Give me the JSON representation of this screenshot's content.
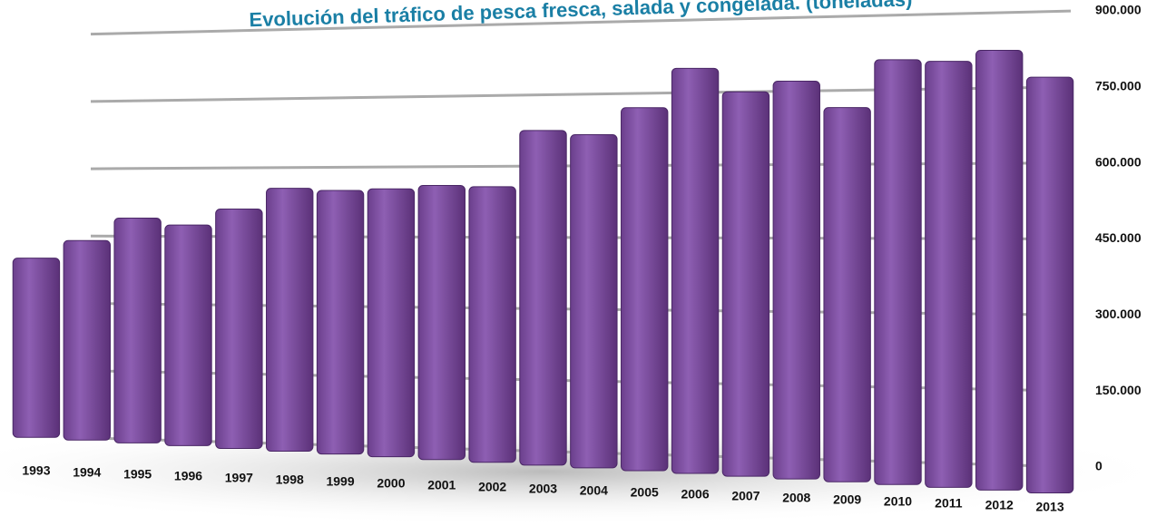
{
  "chart_data": {
    "type": "bar",
    "title": "Evolución del tráfico de pesca fresca, salada y congelada. (toneladas)",
    "categories": [
      "1993",
      "1994",
      "1995",
      "1996",
      "1997",
      "1998",
      "1999",
      "2000",
      "2001",
      "2002",
      "2003",
      "2004",
      "2005",
      "2006",
      "2007",
      "2008",
      "2009",
      "2010",
      "2011",
      "2012",
      "2013"
    ],
    "values": [
      400000,
      440000,
      490000,
      475000,
      510000,
      555000,
      550000,
      553000,
      560000,
      557000,
      675000,
      665000,
      720000,
      800000,
      750000,
      770000,
      715000,
      810000,
      805000,
      825000,
      770000
    ],
    "color": "#7a4a9c",
    "ylim": [
      0,
      900000
    ],
    "yticks": [
      0,
      {
        "value": 150000,
        "label": "150.000"
      },
      {
        "value": 300000,
        "label": "300.000"
      },
      {
        "value": 450000,
        "label": "450.000"
      },
      {
        "value": 600000,
        "label": "600.000"
      },
      {
        "value": 750000,
        "label": "750.000"
      },
      {
        "value": 900000,
        "label": "900.000"
      }
    ],
    "grid": true
  }
}
